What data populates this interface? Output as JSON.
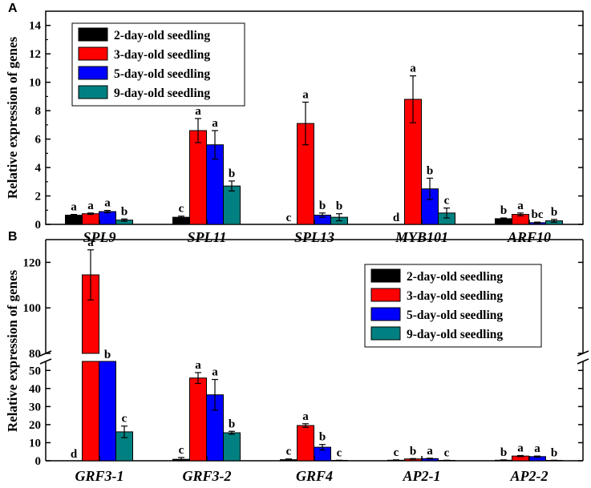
{
  "chart_data": [
    {
      "panel": "A",
      "type": "bar",
      "ylabel": "Relative expression of genes",
      "ylim": [
        0,
        15
      ],
      "yticks": [
        0,
        2,
        4,
        6,
        8,
        10,
        12,
        14
      ],
      "categories": [
        "SPL9",
        "SPL11",
        "SPL13",
        "MYB101",
        "ARF10"
      ],
      "series": [
        {
          "name": "2-day-old seedling",
          "color": "#000000",
          "values": [
            0.65,
            0.5,
            0,
            0,
            0.4
          ],
          "errors": [
            0.05,
            0.08,
            0,
            0,
            0.05
          ],
          "letters": [
            "a",
            "c",
            "c",
            "d",
            "b"
          ]
        },
        {
          "name": "3-day-old seedling",
          "color": "#ff0000",
          "values": [
            0.75,
            6.6,
            7.1,
            8.8,
            0.7
          ],
          "errors": [
            0.05,
            0.85,
            1.5,
            1.65,
            0.1
          ],
          "letters": [
            "a",
            "a",
            "a",
            "a",
            "a"
          ]
        },
        {
          "name": "5-day-old seedling",
          "color": "#0000ff",
          "values": [
            0.9,
            5.6,
            0.65,
            2.5,
            0.12
          ],
          "errors": [
            0.08,
            1.0,
            0.15,
            0.75,
            0.04
          ],
          "letters": [
            "a",
            "a",
            "b",
            "b",
            "bc"
          ]
        },
        {
          "name": "9-day-old seedling",
          "color": "#008080",
          "values": [
            0.3,
            2.7,
            0.5,
            0.8,
            0.25
          ],
          "errors": [
            0.08,
            0.35,
            0.25,
            0.35,
            0.1
          ],
          "letters": [
            "b",
            "b",
            "b",
            "c",
            "b"
          ]
        }
      ],
      "legend_position": "top-left"
    },
    {
      "panel": "B",
      "type": "bar",
      "ylabel": "Relative expression of genes",
      "axis_break": [
        55,
        80
      ],
      "ylim_lower": [
        0,
        55
      ],
      "ylim_upper": [
        80,
        130
      ],
      "yticks_lower": [
        0,
        10,
        20,
        30,
        40,
        50
      ],
      "yticks_upper": [
        80,
        100,
        120
      ],
      "categories": [
        "GRF3-1",
        "GRF3-2",
        "GRF4",
        "AP2-1",
        "AP2-2"
      ],
      "series": [
        {
          "name": "2-day-old seedling",
          "color": "#000000",
          "values": [
            0,
            0.8,
            0.6,
            0.3,
            0.3
          ],
          "errors": [
            0,
            1.0,
            0.4,
            0.2,
            0.2
          ],
          "letters": [
            "d",
            "c",
            "c",
            "c",
            "b"
          ]
        },
        {
          "name": "3-day-old seedling",
          "color": "#ff0000",
          "values": [
            114.5,
            45.8,
            19.5,
            1.0,
            2.6
          ],
          "errors": [
            11,
            3.0,
            1.0,
            0.2,
            0.3
          ],
          "letters": [
            "a",
            "a",
            "a",
            "b",
            "a"
          ]
        },
        {
          "name": "5-day-old seedling",
          "color": "#0000ff",
          "values": [
            55,
            36.5,
            7.5,
            1.2,
            2.3
          ],
          "errors": [
            0,
            8.5,
            1.5,
            0.2,
            0.3
          ],
          "letters": [
            "b",
            "a",
            "b",
            "a",
            "a"
          ]
        },
        {
          "name": "9-day-old seedling",
          "color": "#008080",
          "values": [
            16,
            15.5,
            0.2,
            0.2,
            0.2
          ],
          "errors": [
            3.2,
            0.8,
            0.1,
            0.1,
            0.1
          ],
          "letters": [
            "c",
            "b",
            "c",
            "c",
            "b"
          ]
        }
      ],
      "legend_position": "top-right"
    }
  ]
}
